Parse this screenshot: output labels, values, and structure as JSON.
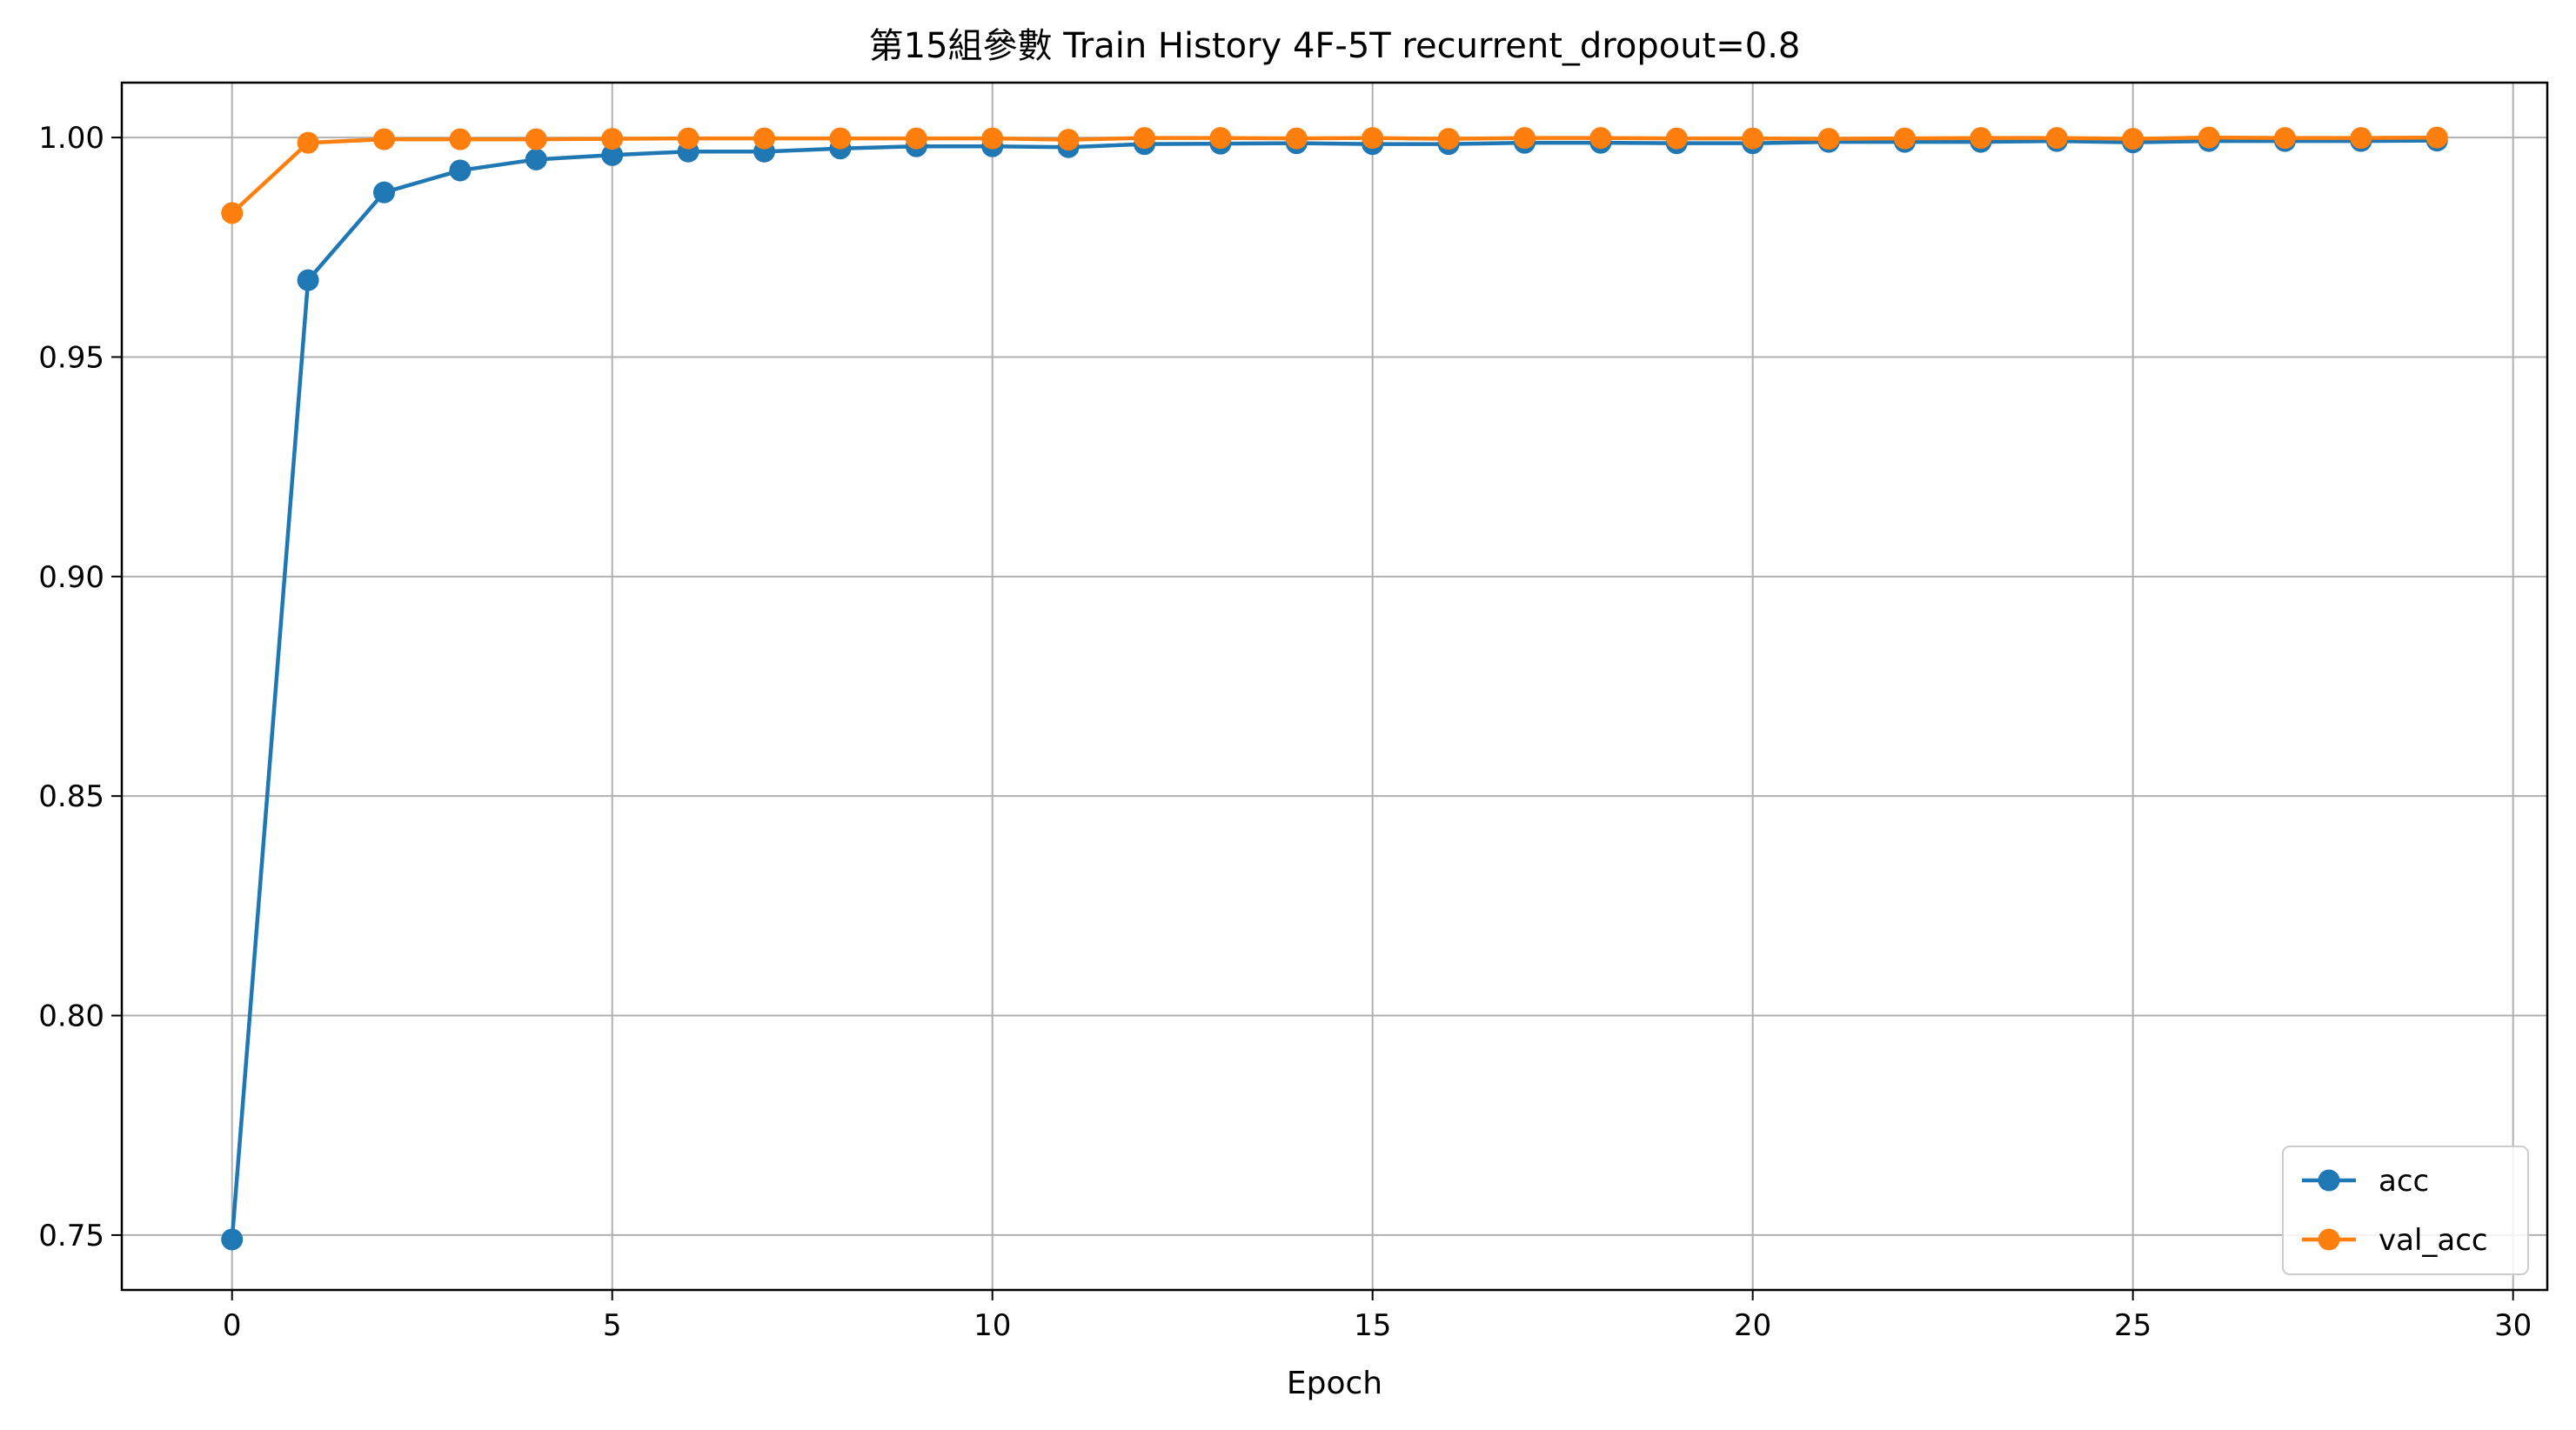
{
  "chart_data": {
    "type": "line",
    "title": "第15組參數 Train History 4F-5T recurrent_dropout=0.8",
    "xlabel": "Epoch",
    "ylabel": "",
    "xlim": [
      -1.45,
      30.45
    ],
    "ylim": [
      0.7375,
      1.0125
    ],
    "xticks": [
      0,
      5,
      10,
      15,
      20,
      25,
      30
    ],
    "xtick_labels": [
      "0",
      "5",
      "10",
      "15",
      "20",
      "25",
      "30"
    ],
    "yticks": [
      0.75,
      0.8,
      0.85,
      0.9,
      0.95,
      1.0
    ],
    "ytick_labels": [
      "0.75",
      "0.80",
      "0.85",
      "0.90",
      "0.95",
      "1.00"
    ],
    "grid": true,
    "legend_position": "bottom-right",
    "x": [
      0,
      1,
      2,
      3,
      4,
      5,
      6,
      7,
      8,
      9,
      10,
      11,
      12,
      13,
      14,
      15,
      16,
      17,
      18,
      19,
      20,
      21,
      22,
      23,
      24,
      25,
      26,
      27,
      28,
      29
    ],
    "series": [
      {
        "name": "acc",
        "color": "#1f77b4",
        "marker": "circle",
        "values": [
          0.749,
          0.9675,
          0.9875,
          0.9925,
          0.995,
          0.996,
          0.9968,
          0.9968,
          0.9975,
          0.998,
          0.998,
          0.9978,
          0.9985,
          0.9986,
          0.9987,
          0.9985,
          0.9985,
          0.9988,
          0.9988,
          0.9987,
          0.9987,
          0.999,
          0.999,
          0.999,
          0.9992,
          0.9989,
          0.9992,
          0.9992,
          0.9992,
          0.9993
        ]
      },
      {
        "name": "val_acc",
        "color": "#ff7f0e",
        "marker": "circle",
        "values": [
          0.9828,
          0.9988,
          0.9996,
          0.9996,
          0.9996,
          0.9997,
          0.9998,
          0.9998,
          0.9998,
          0.9998,
          0.9998,
          0.9995,
          0.9999,
          0.9999,
          0.9998,
          0.9999,
          0.9997,
          0.9999,
          0.9999,
          0.9998,
          0.9998,
          0.9997,
          0.9998,
          0.9999,
          0.9999,
          0.9997,
          1.0,
          0.9999,
          0.9999,
          1.0
        ]
      }
    ]
  }
}
